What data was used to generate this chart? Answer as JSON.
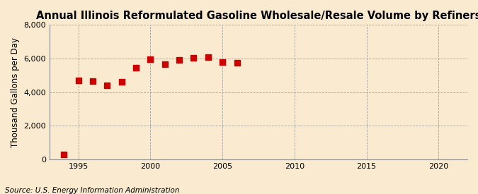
{
  "title": "Annual Illinois Reformulated Gasoline Wholesale/Resale Volume by Refiners",
  "ylabel": "Thousand Gallons per Day",
  "source": "Source: U.S. Energy Information Administration",
  "background_color": "#faebd0",
  "plot_bg_color": "#faebd0",
  "years": [
    1994,
    1995,
    1996,
    1997,
    1998,
    1999,
    2000,
    2001,
    2002,
    2003,
    2004,
    2005,
    2006
  ],
  "values": [
    300,
    4700,
    4650,
    4400,
    4600,
    5450,
    5950,
    5650,
    5900,
    6050,
    6100,
    5800,
    5750
  ],
  "marker_color": "#cc0000",
  "marker_size": 28,
  "xlim": [
    1993.0,
    2022.0
  ],
  "ylim": [
    0,
    8000
  ],
  "xticks": [
    1995,
    2000,
    2005,
    2010,
    2015,
    2020
  ],
  "yticks": [
    0,
    2000,
    4000,
    6000,
    8000
  ],
  "grid_color": "#999999",
  "grid_style": "--",
  "title_fontsize": 10.5,
  "label_fontsize": 8.5,
  "tick_fontsize": 8,
  "source_fontsize": 7.5
}
